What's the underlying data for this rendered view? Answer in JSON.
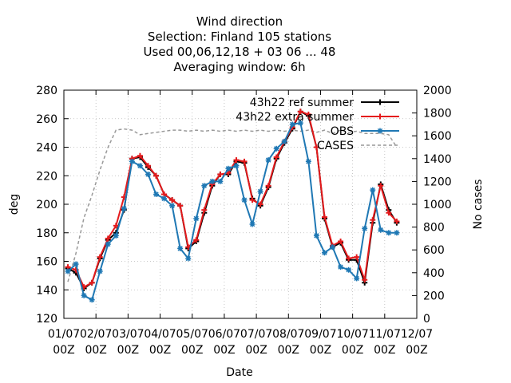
{
  "chart_data": {
    "type": "line",
    "title_lines": [
      "Wind direction",
      "Selection: Finland     105 stations",
      "Used  00,06,12,18  + 03 06 ... 48",
      "Averaging window:  6h"
    ],
    "xlabel": "Date",
    "ylabel": "deg",
    "y2label": "No cases",
    "xlim": [
      0,
      11
    ],
    "x_tick_labels": [
      {
        "x": 0,
        "line1": "01/07",
        "line2": "00Z"
      },
      {
        "x": 1,
        "line1": "02/07",
        "line2": "00Z"
      },
      {
        "x": 2,
        "line1": "03/07",
        "line2": "00Z"
      },
      {
        "x": 3,
        "line1": "04/07",
        "line2": "00Z"
      },
      {
        "x": 4,
        "line1": "05/07",
        "line2": "00Z"
      },
      {
        "x": 5,
        "line1": "06/07",
        "line2": "00Z"
      },
      {
        "x": 6,
        "line1": "07/07",
        "line2": "00Z"
      },
      {
        "x": 7,
        "line1": "08/07",
        "line2": "00Z"
      },
      {
        "x": 8,
        "line1": "09/07",
        "line2": "00Z"
      },
      {
        "x": 9,
        "line1": "10/07",
        "line2": "00Z"
      },
      {
        "x": 10,
        "line1": "11/07",
        "line2": "00Z"
      },
      {
        "x": 11,
        "line1": "12/07",
        "line2": "00Z"
      }
    ],
    "ylim": [
      120,
      280
    ],
    "y_ticks": [
      120,
      140,
      160,
      180,
      200,
      220,
      240,
      260,
      280
    ],
    "y2lim": [
      0,
      2000
    ],
    "y2_ticks": [
      0,
      200,
      400,
      600,
      800,
      1000,
      1200,
      1400,
      1600,
      1800,
      2000
    ],
    "legend_position": "top-right",
    "grid": true,
    "series": [
      {
        "name": "43h22 ref summer",
        "color": "#000000",
        "marker": "plus",
        "x": [
          0.125,
          0.375,
          0.625,
          0.875,
          1.125,
          1.375,
          1.625,
          1.875,
          2.125,
          2.375,
          2.625,
          2.875,
          3.125,
          3.375,
          3.625,
          3.875,
          4.125,
          4.375,
          4.625,
          4.875,
          5.125,
          5.375,
          5.625,
          5.875,
          6.125,
          6.375,
          6.625,
          6.875,
          7.125,
          7.375,
          7.625,
          7.875,
          8.125,
          8.375,
          8.625,
          8.875,
          9.125,
          9.375,
          9.625,
          9.875,
          10.125,
          10.375
        ],
        "y": [
          155,
          152,
          141,
          145,
          162,
          175,
          180,
          196,
          232,
          233,
          226,
          220,
          207,
          203,
          199,
          169,
          174,
          194,
          213,
          221,
          221,
          230,
          229,
          204,
          199,
          212,
          232,
          243,
          253,
          265,
          262,
          240,
          190,
          170,
          173,
          161,
          161,
          145,
          187,
          214,
          196,
          187
        ]
      },
      {
        "name": "43h22 extra summer",
        "color": "#e41a1c",
        "marker": "plus",
        "x": [
          0.125,
          0.375,
          0.625,
          0.875,
          1.125,
          1.375,
          1.625,
          1.875,
          2.125,
          2.375,
          2.625,
          2.875,
          3.125,
          3.375,
          3.625,
          3.875,
          4.125,
          4.375,
          4.625,
          4.875,
          5.125,
          5.375,
          5.625,
          5.875,
          6.125,
          6.375,
          6.625,
          6.875,
          7.125,
          7.375,
          7.625,
          7.875,
          8.125,
          8.375,
          8.625,
          8.875,
          9.125,
          9.375,
          9.625,
          9.875,
          10.125,
          10.375
        ],
        "y": [
          156,
          154,
          142,
          145,
          163,
          176,
          185,
          205,
          232,
          234,
          227,
          220,
          207,
          203,
          199,
          170,
          175,
          196,
          214,
          221,
          222,
          231,
          230,
          203,
          200,
          213,
          233,
          244,
          254,
          265,
          263,
          240,
          191,
          171,
          174,
          162,
          163,
          147,
          189,
          213,
          194,
          188
        ]
      },
      {
        "name": "OBS",
        "color": "#1f78b4",
        "marker": "star",
        "x": [
          0.125,
          0.375,
          0.625,
          0.875,
          1.125,
          1.375,
          1.625,
          1.875,
          2.125,
          2.375,
          2.625,
          2.875,
          3.125,
          3.375,
          3.625,
          3.875,
          4.125,
          4.375,
          4.625,
          4.875,
          5.125,
          5.375,
          5.625,
          5.875,
          6.125,
          6.375,
          6.625,
          6.875,
          7.125,
          7.375,
          7.625,
          7.875,
          8.125,
          8.375,
          8.625,
          8.875,
          9.125,
          9.375,
          9.625,
          9.875,
          10.125,
          10.375
        ],
        "y": [
          153,
          158,
          136,
          133,
          153,
          172,
          178,
          197,
          230,
          227,
          221,
          207,
          204,
          199,
          169,
          162,
          190,
          213,
          216,
          216,
          225,
          227,
          203,
          186,
          209,
          231,
          239,
          244,
          256,
          257,
          230,
          178,
          166,
          170,
          156,
          154,
          148,
          183,
          210,
          182,
          180,
          180
        ]
      },
      {
        "name": "CASES",
        "color": "#999999",
        "marker": "none",
        "dashed": true,
        "axis": "y2",
        "x": [
          0.125,
          0.375,
          0.625,
          0.875,
          1.125,
          1.375,
          1.625,
          1.875,
          2.125,
          2.375,
          2.625,
          2.875,
          3.125,
          3.375,
          3.625,
          3.875,
          4.125,
          4.375,
          4.625,
          4.875,
          5.125,
          5.375,
          5.625,
          5.875,
          6.125,
          6.375,
          6.625,
          6.875,
          7.125,
          7.375,
          7.625,
          7.875,
          8.125,
          8.375,
          8.625,
          8.875,
          9.125,
          9.375,
          9.625,
          9.875,
          10.125,
          10.375
        ],
        "y": [
          320,
          570,
          880,
          1080,
          1300,
          1500,
          1650,
          1660,
          1650,
          1610,
          1620,
          1630,
          1640,
          1650,
          1650,
          1640,
          1650,
          1640,
          1650,
          1640,
          1650,
          1640,
          1650,
          1640,
          1650,
          1640,
          1650,
          1640,
          1650,
          1640,
          1650,
          1630,
          1650,
          1620,
          1650,
          1630,
          1640,
          1620,
          1620,
          1620,
          1610,
          1500
        ]
      }
    ]
  }
}
